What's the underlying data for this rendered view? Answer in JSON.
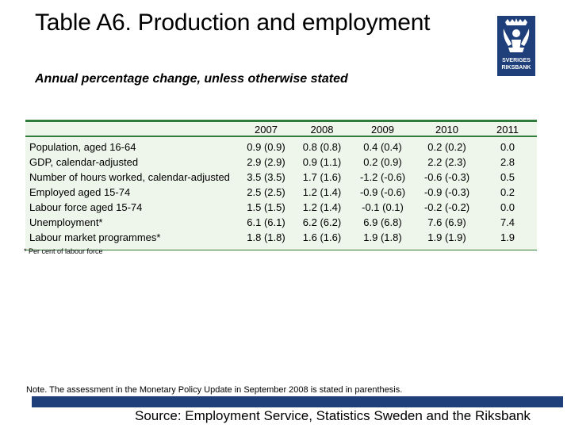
{
  "title": "Table A6. Production and employment",
  "subtitle": "Annual percentage change, unless otherwise stated",
  "logo": {
    "text": "SVERIGES RIKSBANK",
    "color": "#1f3f7a"
  },
  "table": {
    "columns": [
      "",
      "2007",
      "2008",
      "2009",
      "2010",
      "2011"
    ],
    "rows": [
      [
        "Population, aged 16-64",
        "0.9 (0.9)",
        "0.8 (0.8)",
        "0.4 (0.4)",
        "0.2 (0.2)",
        "0.0"
      ],
      [
        "GDP, calendar-adjusted",
        "2.9 (2.9)",
        "0.9 (1.1)",
        "0.2 (0.9)",
        "2.2 (2.3)",
        "2.8"
      ],
      [
        "Number of hours worked, calendar-adjusted",
        "3.5 (3.5)",
        "1.7 (1.6)",
        "-1.2 (-0.6)",
        "-0.6 (-0.3)",
        "0.5"
      ],
      [
        "Employed aged 15-74",
        "2.5 (2.5)",
        "1.2 (1.4)",
        "-0.9 (-0.6)",
        "-0.9 (-0.3)",
        "0.2"
      ],
      [
        "Labour force aged 15-74",
        "1.5 (1.5)",
        "1.2 (1.4)",
        "-0.1 (0.1)",
        "-0.2 (-0.2)",
        "0.0"
      ],
      [
        "Unemployment*",
        "6.1 (6.1)",
        "6.2 (6.2)",
        "6.9 (6.8)",
        "7.6 (6.9)",
        "7.4"
      ],
      [
        "Labour market programmes*",
        "1.8 (1.8)",
        "1.6 (1.6)",
        "1.9 (1.8)",
        "1.9 (1.9)",
        "1.9"
      ]
    ]
  },
  "footnote": "* Per cent of labour force",
  "note": "Note. The assessment in the Monetary Policy Update in September 2008 is stated in parenthesis.",
  "source": "Source: Employment Service, Statistics Sweden and the Riksbank",
  "colors": {
    "table_rule": "#2f7d3a",
    "table_bg": "#eef5ea",
    "brand_blue": "#1f3f7a"
  }
}
